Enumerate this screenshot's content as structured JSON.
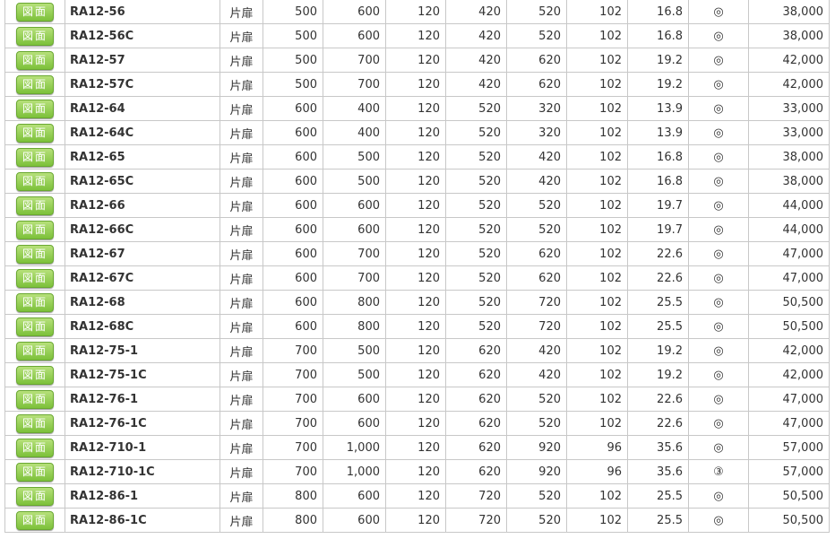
{
  "button_label": "図面",
  "rows": [
    [
      "RA12-56",
      "片扉",
      "500",
      "600",
      "120",
      "420",
      "520",
      "102",
      "16.8",
      "◎",
      "38,000"
    ],
    [
      "RA12-56C",
      "片扉",
      "500",
      "600",
      "120",
      "420",
      "520",
      "102",
      "16.8",
      "◎",
      "38,000"
    ],
    [
      "RA12-57",
      "片扉",
      "500",
      "700",
      "120",
      "420",
      "620",
      "102",
      "19.2",
      "◎",
      "42,000"
    ],
    [
      "RA12-57C",
      "片扉",
      "500",
      "700",
      "120",
      "420",
      "620",
      "102",
      "19.2",
      "◎",
      "42,000"
    ],
    [
      "RA12-64",
      "片扉",
      "600",
      "400",
      "120",
      "520",
      "320",
      "102",
      "13.9",
      "◎",
      "33,000"
    ],
    [
      "RA12-64C",
      "片扉",
      "600",
      "400",
      "120",
      "520",
      "320",
      "102",
      "13.9",
      "◎",
      "33,000"
    ],
    [
      "RA12-65",
      "片扉",
      "600",
      "500",
      "120",
      "520",
      "420",
      "102",
      "16.8",
      "◎",
      "38,000"
    ],
    [
      "RA12-65C",
      "片扉",
      "600",
      "500",
      "120",
      "520",
      "420",
      "102",
      "16.8",
      "◎",
      "38,000"
    ],
    [
      "RA12-66",
      "片扉",
      "600",
      "600",
      "120",
      "520",
      "520",
      "102",
      "19.7",
      "◎",
      "44,000"
    ],
    [
      "RA12-66C",
      "片扉",
      "600",
      "600",
      "120",
      "520",
      "520",
      "102",
      "19.7",
      "◎",
      "44,000"
    ],
    [
      "RA12-67",
      "片扉",
      "600",
      "700",
      "120",
      "520",
      "620",
      "102",
      "22.6",
      "◎",
      "47,000"
    ],
    [
      "RA12-67C",
      "片扉",
      "600",
      "700",
      "120",
      "520",
      "620",
      "102",
      "22.6",
      "◎",
      "47,000"
    ],
    [
      "RA12-68",
      "片扉",
      "600",
      "800",
      "120",
      "520",
      "720",
      "102",
      "25.5",
      "◎",
      "50,500"
    ],
    [
      "RA12-68C",
      "片扉",
      "600",
      "800",
      "120",
      "520",
      "720",
      "102",
      "25.5",
      "◎",
      "50,500"
    ],
    [
      "RA12-75-1",
      "片扉",
      "700",
      "500",
      "120",
      "620",
      "420",
      "102",
      "19.2",
      "◎",
      "42,000"
    ],
    [
      "RA12-75-1C",
      "片扉",
      "700",
      "500",
      "120",
      "620",
      "420",
      "102",
      "19.2",
      "◎",
      "42,000"
    ],
    [
      "RA12-76-1",
      "片扉",
      "700",
      "600",
      "120",
      "620",
      "520",
      "102",
      "22.6",
      "◎",
      "47,000"
    ],
    [
      "RA12-76-1C",
      "片扉",
      "700",
      "600",
      "120",
      "620",
      "520",
      "102",
      "22.6",
      "◎",
      "47,000"
    ],
    [
      "RA12-710-1",
      "片扉",
      "700",
      "1,000",
      "120",
      "620",
      "920",
      "96",
      "35.6",
      "◎",
      "57,000"
    ],
    [
      "RA12-710-1C",
      "片扉",
      "700",
      "1,000",
      "120",
      "620",
      "920",
      "96",
      "35.6",
      "③",
      "57,000"
    ],
    [
      "RA12-86-1",
      "片扉",
      "800",
      "600",
      "120",
      "720",
      "520",
      "102",
      "25.5",
      "◎",
      "50,500"
    ],
    [
      "RA12-86-1C",
      "片扉",
      "800",
      "600",
      "120",
      "720",
      "520",
      "102",
      "25.5",
      "◎",
      "50,500"
    ]
  ]
}
